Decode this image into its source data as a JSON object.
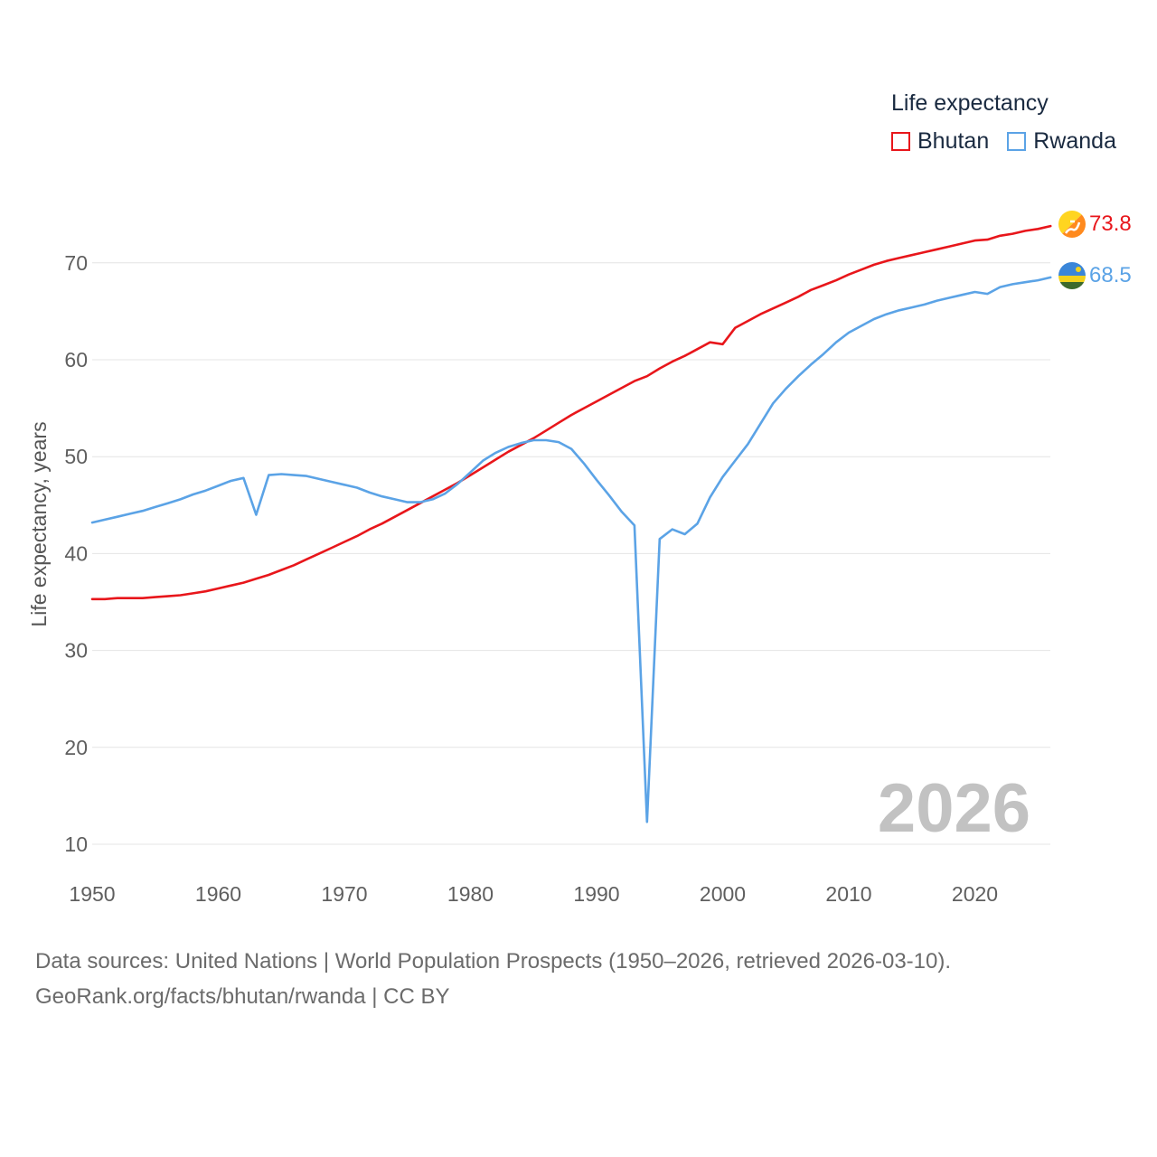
{
  "legend": {
    "title": "Life expectancy",
    "items": [
      {
        "label": "Bhutan",
        "color": "#e8161b"
      },
      {
        "label": "Rwanda",
        "color": "#5ba3e6"
      }
    ]
  },
  "source": {
    "line1": "Data sources: United Nations | World Population Prospects (1950–2026, retrieved 2026-03-10).",
    "line2": "GeoRank.org/facts/bhutan/rwanda | CC BY"
  },
  "chart_data": {
    "type": "line",
    "title": "Life expectancy",
    "xlabel": "",
    "ylabel": "Life expectancy, years",
    "xlim": [
      1950,
      2026
    ],
    "ylim": [
      10,
      75
    ],
    "x_ticks": [
      "1950",
      "1960",
      "1970",
      "1980",
      "1990",
      "2000",
      "2010",
      "2020"
    ],
    "y_ticks": [
      "10",
      "20",
      "30",
      "40",
      "50",
      "60",
      "70"
    ],
    "year_label": "2026",
    "grid": true,
    "legend_position": "top-right",
    "x": [
      1950,
      1951,
      1952,
      1953,
      1954,
      1955,
      1956,
      1957,
      1958,
      1959,
      1960,
      1961,
      1962,
      1963,
      1964,
      1965,
      1966,
      1967,
      1968,
      1969,
      1970,
      1971,
      1972,
      1973,
      1974,
      1975,
      1976,
      1977,
      1978,
      1979,
      1980,
      1981,
      1982,
      1983,
      1984,
      1985,
      1986,
      1987,
      1988,
      1989,
      1990,
      1991,
      1992,
      1993,
      1994,
      1995,
      1996,
      1997,
      1998,
      1999,
      2000,
      2001,
      2002,
      2003,
      2004,
      2005,
      2006,
      2007,
      2008,
      2009,
      2010,
      2011,
      2012,
      2013,
      2014,
      2015,
      2016,
      2017,
      2018,
      2019,
      2020,
      2021,
      2022,
      2023,
      2024,
      2025,
      2026
    ],
    "series": [
      {
        "name": "Bhutan",
        "color": "#e8161b",
        "end_label": "73.8",
        "values": [
          35.3,
          35.3,
          35.4,
          35.4,
          35.4,
          35.5,
          35.6,
          35.7,
          35.9,
          36.1,
          36.4,
          36.7,
          37.0,
          37.4,
          37.8,
          38.3,
          38.8,
          39.4,
          40.0,
          40.6,
          41.2,
          41.8,
          42.5,
          43.1,
          43.8,
          44.5,
          45.2,
          45.9,
          46.6,
          47.3,
          48.1,
          48.9,
          49.7,
          50.5,
          51.2,
          51.9,
          52.7,
          53.5,
          54.3,
          55.0,
          55.7,
          56.4,
          57.1,
          57.8,
          58.3,
          59.1,
          59.8,
          60.4,
          61.1,
          61.8,
          61.6,
          63.3,
          64.0,
          64.7,
          65.3,
          65.9,
          66.5,
          67.2,
          67.7,
          68.2,
          68.8,
          69.3,
          69.8,
          70.2,
          70.5,
          70.8,
          71.1,
          71.4,
          71.7,
          72.0,
          72.3,
          72.4,
          72.8,
          73.0,
          73.3,
          73.5,
          73.8
        ]
      },
      {
        "name": "Rwanda",
        "color": "#5ba3e6",
        "end_label": "68.5",
        "values": [
          43.2,
          43.5,
          43.8,
          44.1,
          44.4,
          44.8,
          45.2,
          45.6,
          46.1,
          46.5,
          47.0,
          47.5,
          47.8,
          44.0,
          48.1,
          48.2,
          48.1,
          48.0,
          47.7,
          47.4,
          47.1,
          46.8,
          46.3,
          45.9,
          45.6,
          45.3,
          45.3,
          45.6,
          46.2,
          47.2,
          48.4,
          49.6,
          50.4,
          51.0,
          51.4,
          51.7,
          51.7,
          51.5,
          50.8,
          49.3,
          47.6,
          46.0,
          44.3,
          42.9,
          12.3,
          41.5,
          42.5,
          42.0,
          43.1,
          45.8,
          47.9,
          49.6,
          51.3,
          53.4,
          55.5,
          57.0,
          58.3,
          59.5,
          60.6,
          61.8,
          62.8,
          63.5,
          64.2,
          64.7,
          65.1,
          65.4,
          65.7,
          66.1,
          66.4,
          66.7,
          67.0,
          66.8,
          67.5,
          67.8,
          68.0,
          68.2,
          68.5
        ]
      }
    ]
  }
}
